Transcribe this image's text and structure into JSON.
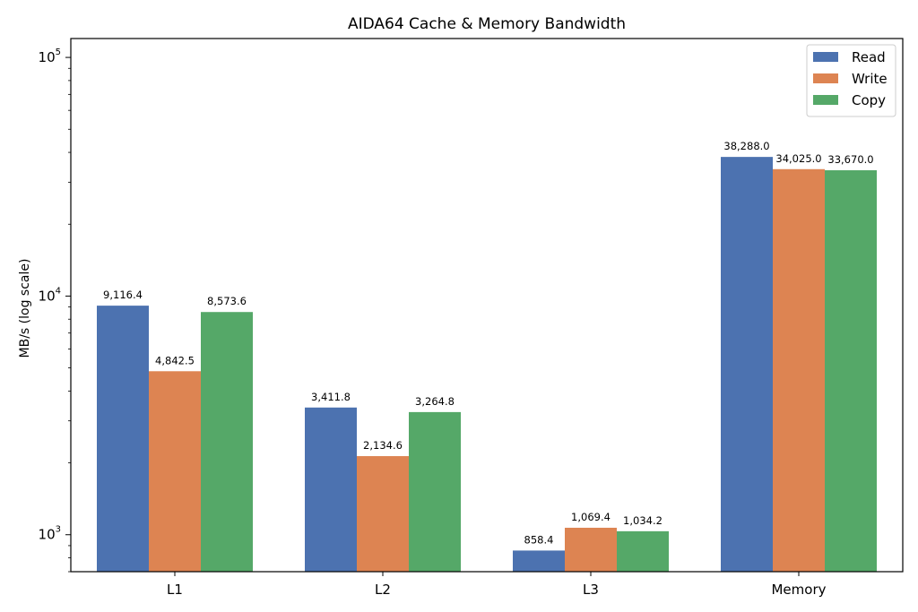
{
  "chart_data": {
    "type": "bar",
    "title": "AIDA64 Cache & Memory Bandwidth",
    "xlabel": "",
    "ylabel": "MB/s (log scale)",
    "yscale": "log",
    "ylim": [
      700,
      120000
    ],
    "yticks": [
      {
        "value": 1000,
        "base": "10",
        "exp": "3"
      },
      {
        "value": 10000,
        "base": "10",
        "exp": "4"
      },
      {
        "value": 100000,
        "base": "10",
        "exp": "5"
      }
    ],
    "categories": [
      "L1",
      "L2",
      "L3",
      "Memory"
    ],
    "series": [
      {
        "name": "Read",
        "color": "#4c72b0",
        "values": [
          9116.4,
          3411.8,
          858.4,
          38288.0
        ],
        "labels": [
          "9,116.4",
          "3,411.8",
          "858.4",
          "38,288.0"
        ]
      },
      {
        "name": "Write",
        "color": "#dd8452",
        "values": [
          4842.5,
          2134.6,
          1069.4,
          34025.0
        ],
        "labels": [
          "4,842.5",
          "2,134.6",
          "1,069.4",
          "34,025.0"
        ]
      },
      {
        "name": "Copy",
        "color": "#55a868",
        "values": [
          8573.6,
          3264.8,
          1034.2,
          33670.0
        ],
        "labels": [
          "8,573.6",
          "3,264.8",
          "1,034.2",
          "33,670.0"
        ]
      }
    ],
    "legend": {
      "position": "top-right"
    },
    "grid": false
  }
}
